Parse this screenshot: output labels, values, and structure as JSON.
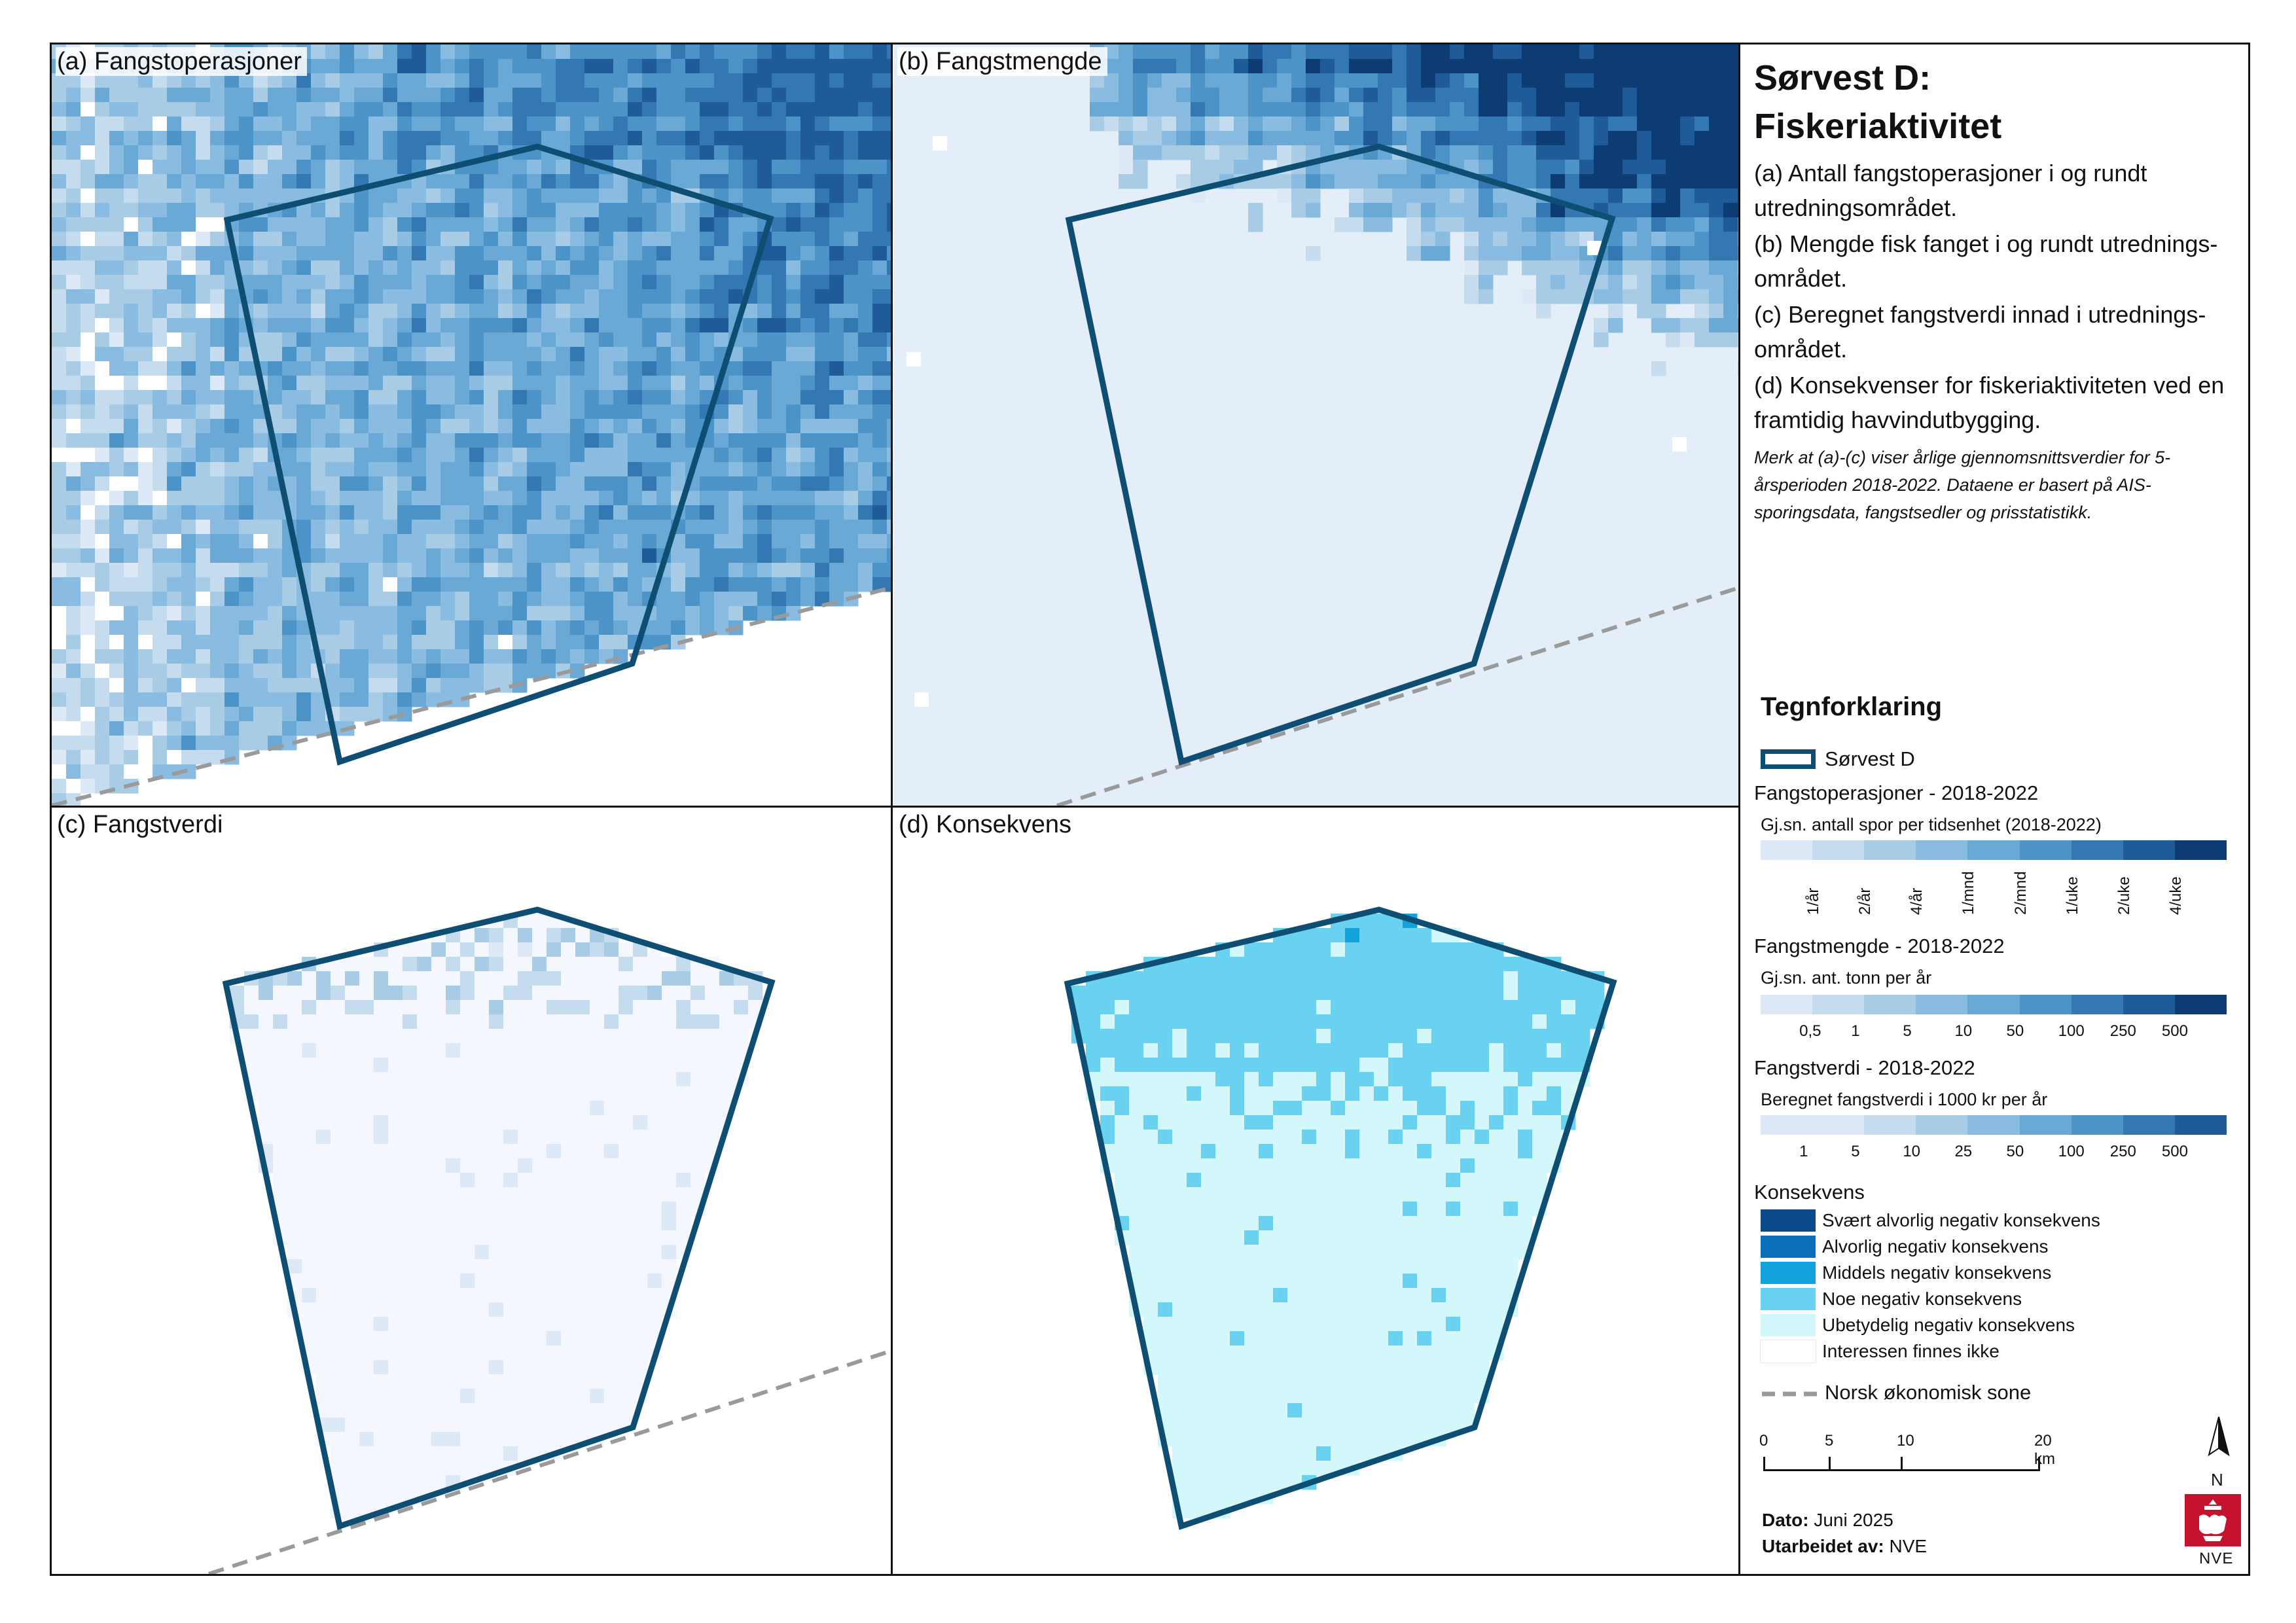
{
  "panels": {
    "a": {
      "label": "(a) Fangstoperasjoner"
    },
    "b": {
      "label": "(b) Fangstmengde"
    },
    "c": {
      "label": "(c) Fangstverdi"
    },
    "d": {
      "label": "(d) Konsekvens"
    }
  },
  "sidebar": {
    "title_line1": "Sørvest D:",
    "title_line2": "Fiskeriaktivitet",
    "desc_a": "(a) Antall fangstoperasjoner i og rundt utredningsområdet.",
    "desc_b": "(b) Mengde fisk fanget i og rundt utrednings-området.",
    "desc_c": "(c) Beregnet fangstverdi innad i utrednings-området.",
    "desc_d": "(d) Konsekvenser for fiskeriaktiviteten ved en framtidig havvindutbygging.",
    "note": "Merk at (a)-(c) viser årlige gjennomsnittsverdier for 5-årsperioden 2018-2022. Dataene er basert på AIS-sporingsdata, fangstsedler og prisstatistikk."
  },
  "legend": {
    "title": "Tegnforklaring",
    "area_label": "Sørvest D",
    "ops_title": "Fangstoperasjoner - 2018-2022",
    "ops_sub": "Gj.sn. antall spor per tidsenhet (2018-2022)",
    "ops_ticks": [
      "1/år",
      "2/år",
      "4/år",
      "1/mnd",
      "2/mnd",
      "1/uke",
      "2/uke",
      "4/uke"
    ],
    "amount_title": "Fangstmengde - 2018-2022",
    "amount_sub": "Gj.sn. ant. tonn per år",
    "amount_ticks": [
      "0,5",
      "1",
      "5",
      "10",
      "50",
      "100",
      "250",
      "500"
    ],
    "value_title": "Fangstverdi - 2018-2022",
    "value_sub": "Beregnet fangstverdi i 1000 kr per år",
    "value_ticks": [
      "1",
      "5",
      "10",
      "25",
      "50",
      "100",
      "250",
      "500"
    ],
    "ramp_colors": [
      "#dde9f6",
      "#c5dcee",
      "#a9cce6",
      "#89bce0",
      "#6aa9d6",
      "#4c93c8",
      "#3377b3",
      "#1f5b98",
      "#0d3b73"
    ],
    "cons_title": "Konsekvens",
    "cons_items": [
      {
        "label": "Svært alvorlig negativ konsekvens",
        "color": "#0b4a8a"
      },
      {
        "label": "Alvorlig negativ konsekvens",
        "color": "#0a6fb8"
      },
      {
        "label": "Middels negativ konsekvens",
        "color": "#12a3dd"
      },
      {
        "label": "Noe negativ konsekvens",
        "color": "#69d2f0"
      },
      {
        "label": "Ubetydelig negativ konsekvens",
        "color": "#d3f8fb"
      },
      {
        "label": "Interessen finnes ikke",
        "color": "#ffffff"
      }
    ],
    "zone_label": "Norsk økonomisk sone",
    "scale_ticks": [
      "0",
      "5",
      "10",
      "20 km"
    ],
    "north": "N",
    "date_label": "Dato:",
    "date_value": "Juni 2025",
    "author_label": "Utarbeidet av:",
    "author_value": "NVE",
    "logo_text": "NVE"
  },
  "colors": {
    "outline": "#0e4e73",
    "zone_line": "#9a9a9a"
  }
}
